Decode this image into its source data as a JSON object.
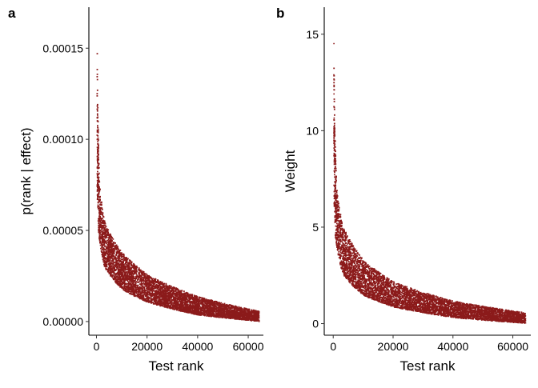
{
  "chart_data": [
    {
      "type": "scatter",
      "panel_label": "a",
      "xlabel": "Test rank",
      "ylabel": "p(rank | effect)",
      "xlim": [
        -3000,
        66000
      ],
      "ylim": [
        -7.5e-06,
        0.0001725
      ],
      "x_ticks": [
        0,
        20000,
        40000,
        60000
      ],
      "x_tick_labels": [
        "0",
        "20000",
        "40000",
        "60000"
      ],
      "y_ticks": [
        0,
        5e-05,
        0.0001,
        0.00015
      ],
      "y_tick_labels": [
        "0.00000",
        "0.00005",
        "0.00010",
        "0.00015"
      ],
      "grid": false,
      "point_color": "#8b1a1a",
      "trend": {
        "description": "dense band of points decaying from about 0.00012 at rank 0 to about 0.000003 at rank 64000",
        "x_max": 64000,
        "upper_edge": [
          [
            0,
            0.000165
          ],
          [
            200,
            0.000125
          ],
          [
            1000,
            7.5e-05
          ],
          [
            3000,
            5.5e-05
          ],
          [
            10000,
            3.8e-05
          ],
          [
            20000,
            2.6e-05
          ],
          [
            40000,
            1.4e-05
          ],
          [
            64000,
            6e-06
          ]
        ],
        "lower_edge": [
          [
            0,
            8e-05
          ],
          [
            500,
            5e-05
          ],
          [
            3000,
            3e-05
          ],
          [
            10000,
            1.8e-05
          ],
          [
            20000,
            1.1e-05
          ],
          [
            40000,
            4e-06
          ],
          [
            64000,
            5e-07
          ]
        ]
      }
    },
    {
      "type": "scatter",
      "panel_label": "b",
      "xlabel": "Test rank",
      "ylabel": "Weight",
      "xlim": [
        -3000,
        66000
      ],
      "ylim": [
        -0.6,
        16.4
      ],
      "x_ticks": [
        0,
        20000,
        40000,
        60000
      ],
      "x_tick_labels": [
        "0",
        "20000",
        "40000",
        "60000"
      ],
      "y_ticks": [
        0,
        5,
        10,
        15
      ],
      "y_tick_labels": [
        "0",
        "5",
        "10",
        "15"
      ],
      "grid": false,
      "point_color": "#8b1a1a",
      "trend": {
        "description": "dense band of points decaying from about 11 at rank 0 to about 0.3 at rank 64000",
        "x_max": 64000,
        "upper_edge": [
          [
            0,
            15.7
          ],
          [
            200,
            11.0
          ],
          [
            1000,
            7.0
          ],
          [
            3000,
            5.1
          ],
          [
            10000,
            3.3
          ],
          [
            20000,
            2.2
          ],
          [
            40000,
            1.2
          ],
          [
            64000,
            0.6
          ]
        ],
        "lower_edge": [
          [
            0,
            7.0
          ],
          [
            500,
            4.5
          ],
          [
            3000,
            2.6
          ],
          [
            10000,
            1.5
          ],
          [
            20000,
            0.9
          ],
          [
            40000,
            0.35
          ],
          [
            64000,
            0.05
          ]
        ]
      }
    }
  ]
}
